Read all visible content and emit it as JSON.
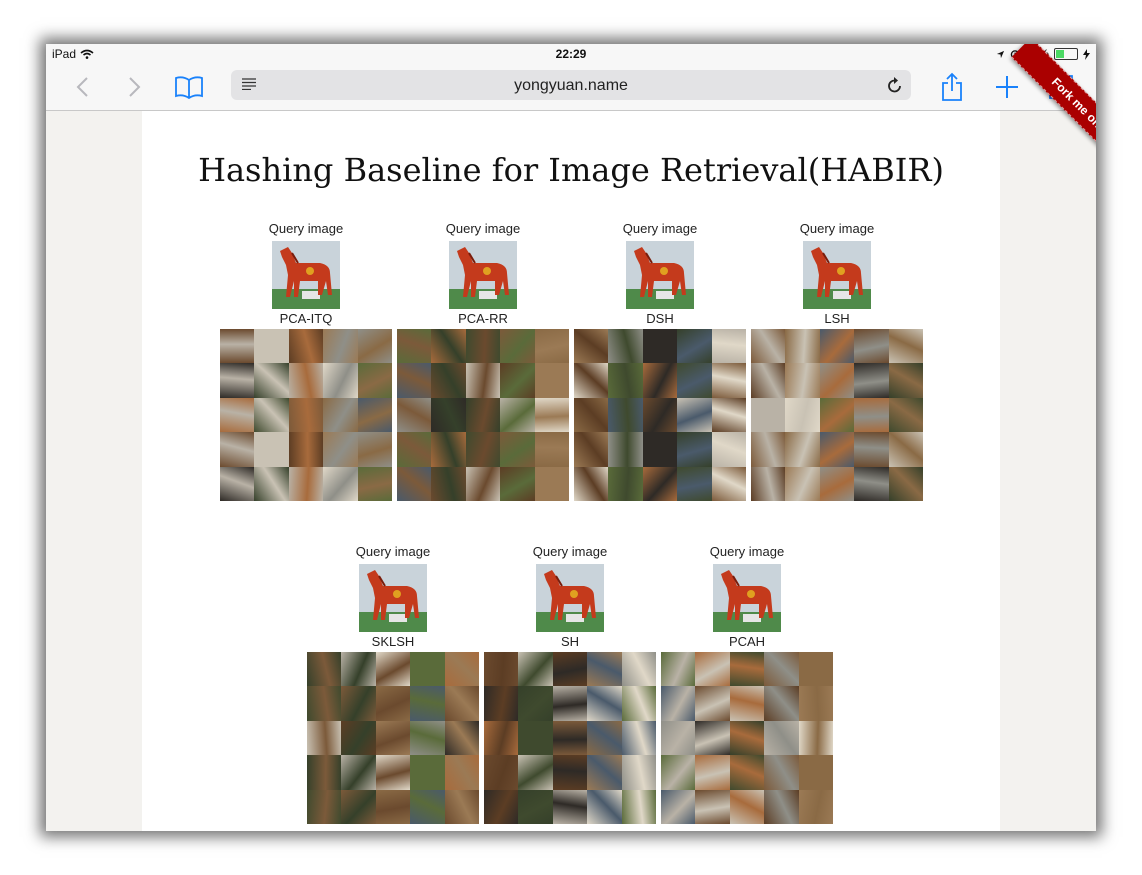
{
  "status_bar": {
    "device": "iPad",
    "time": "22:29",
    "battery": "40%",
    "battery_level": 0.4
  },
  "browser": {
    "url": "yongyuan.name",
    "icons": [
      "back-icon",
      "forward-icon",
      "bookmarks-icon",
      "reader-icon",
      "reload-icon",
      "share-icon",
      "new-tab-icon",
      "tabs-icon"
    ]
  },
  "page": {
    "title": "Hashing Baseline for Image Retrieval(HABIR)",
    "ribbon": "Fork me on GitHub",
    "query_label": "Query image",
    "results": [
      {
        "method": "PCA-ITQ"
      },
      {
        "method": "PCA-RR"
      },
      {
        "method": "DSH"
      },
      {
        "method": "LSH"
      },
      {
        "method": "SKLSH"
      },
      {
        "method": "SH"
      },
      {
        "method": "PCAH"
      }
    ]
  },
  "colors": {
    "ribbon": "#aa0000",
    "ios_blue": "#1a82fb",
    "tile_palette": [
      "#6b4a2e",
      "#8a6a45",
      "#3f4a2e",
      "#5a6b3a",
      "#b9b2a6",
      "#2e2a26",
      "#9b7a55",
      "#c9c2b4",
      "#4a5a6b",
      "#7c5a3a",
      "#a86b3c",
      "#e0d8c8",
      "#35402a",
      "#8f8f88",
      "#5c3d24"
    ]
  }
}
